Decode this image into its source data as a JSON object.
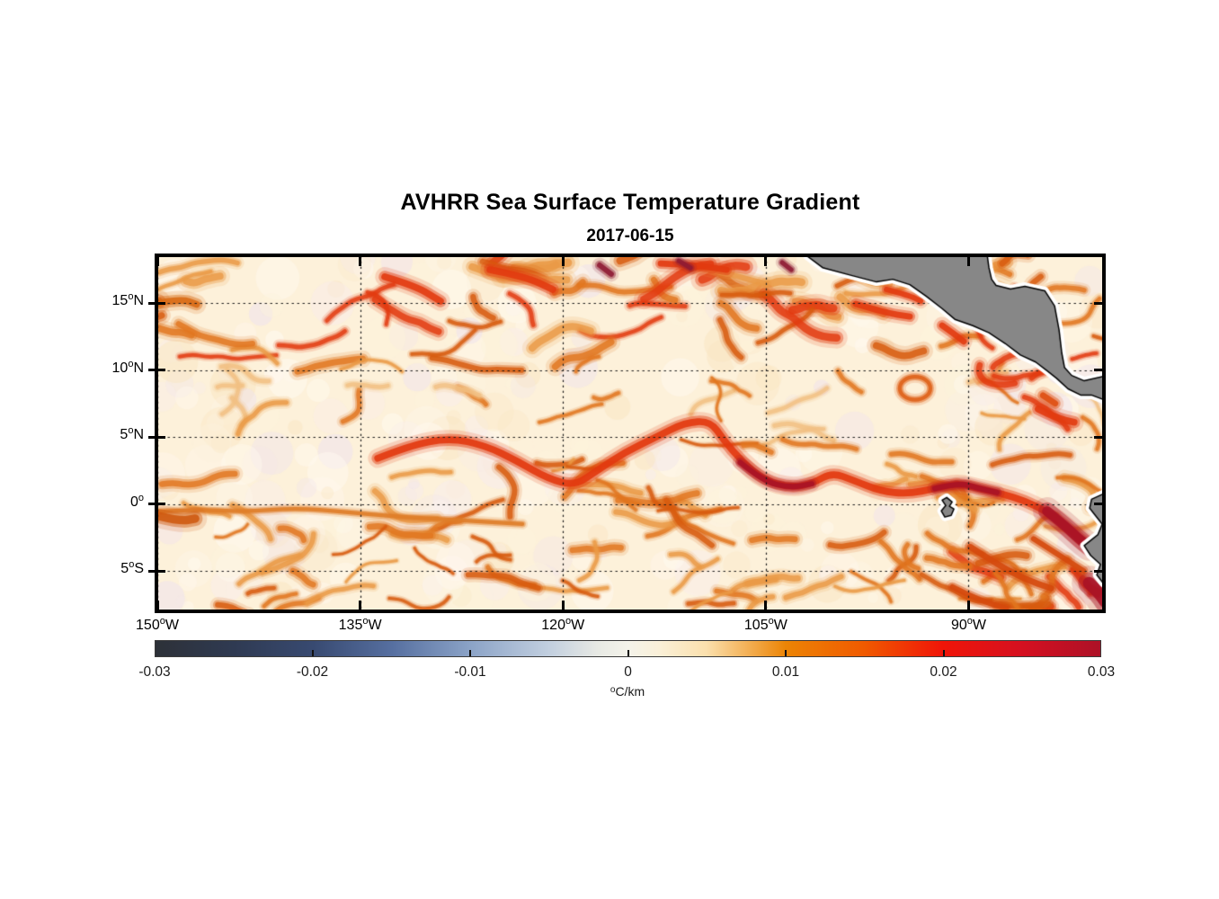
{
  "figure": {
    "title": "AVHRR Sea Surface Temperature Gradient",
    "subtitle": "2017-06-15"
  },
  "map": {
    "x_ticks": [
      {
        "value": -150,
        "text": "150",
        "sup": "o",
        "suffix": "W"
      },
      {
        "value": -135,
        "text": "135",
        "sup": "o",
        "suffix": "W"
      },
      {
        "value": -120,
        "text": "120",
        "sup": "o",
        "suffix": "W"
      },
      {
        "value": -105,
        "text": "105",
        "sup": "o",
        "suffix": "W"
      },
      {
        "value": -90,
        "text": "90",
        "sup": "o",
        "suffix": "W"
      }
    ],
    "y_ticks": [
      {
        "value": 15,
        "text": "15",
        "sup": "o",
        "suffix": "N"
      },
      {
        "value": 10,
        "text": "10",
        "sup": "o",
        "suffix": "N"
      },
      {
        "value": 5,
        "text": "5",
        "sup": "o",
        "suffix": "N"
      },
      {
        "value": 0,
        "text": "0",
        "sup": "o",
        "suffix": ""
      },
      {
        "value": -5,
        "text": "5",
        "sup": "o",
        "suffix": "S"
      }
    ]
  },
  "colorbar": {
    "min": -0.03,
    "max": 0.03,
    "tick_values": [
      -0.03,
      -0.02,
      -0.01,
      0,
      0.01,
      0.02,
      0.03
    ],
    "tick_labels": [
      "-0.03",
      "-0.02",
      "-0.01",
      "0",
      "0.01",
      "0.02",
      "0.03"
    ],
    "interior_tick_values": [
      -0.02,
      -0.01,
      0,
      0.01,
      0.02
    ],
    "unit_sup": "o",
    "unit_text": "C/km",
    "stops": [
      {
        "v": -0.03,
        "c": "#2d3138"
      },
      {
        "v": -0.025,
        "c": "#2f3a52"
      },
      {
        "v": -0.02,
        "c": "#384a71"
      },
      {
        "v": -0.015,
        "c": "#566fa0"
      },
      {
        "v": -0.01,
        "c": "#8ba3c7"
      },
      {
        "v": -0.005,
        "c": "#c2cfdf"
      },
      {
        "v": -0.002,
        "c": "#e7e9e4"
      },
      {
        "v": 0,
        "c": "#f4f3ea"
      },
      {
        "v": 0.002,
        "c": "#faf0d8"
      },
      {
        "v": 0.005,
        "c": "#fbe0ad"
      },
      {
        "v": 0.01,
        "c": "#ec8405"
      },
      {
        "v": 0.015,
        "c": "#f05a00"
      },
      {
        "v": 0.02,
        "c": "#f01508"
      },
      {
        "v": 0.025,
        "c": "#d51020"
      },
      {
        "v": 0.03,
        "c": "#ad1127"
      }
    ]
  },
  "chart_data": {
    "type": "heatmap",
    "title": "AVHRR Sea Surface Temperature Gradient",
    "subtitle": "2017-06-15",
    "variable": "sea surface temperature gradient magnitude",
    "units": "degC/km",
    "extent": {
      "lon": [
        -150,
        -80.06
      ],
      "lat": [
        -7.95,
        18.49
      ]
    },
    "grid_lons": [
      -150,
      -135,
      -120,
      -105,
      -90
    ],
    "grid_lats": [
      15,
      10,
      5,
      0,
      -5
    ],
    "colorbar_range": [
      -0.03,
      0.03
    ],
    "seed": 12345,
    "ocean_bg": "#fdf1da",
    "land_color": "#878787",
    "coast_color": "#000000",
    "coast_halo": "#ffffff",
    "mottle_colors": [
      "#f8ecec",
      "#efe2ee",
      "#fdf3dc",
      "#fff8ee",
      "#fae6c3",
      "#fffaf0"
    ],
    "palette": [
      "#f2c083",
      "#ea9a45",
      "#e1761f",
      "#d85a0e",
      "#e23a10",
      "#bf1b1c"
    ],
    "bands": [
      {
        "name": "north-tropical-front-zone",
        "lon": [
          -150,
          -88.5
        ],
        "lat": [
          10.8,
          18.2
        ],
        "n": 58,
        "wMin": 4,
        "wMax": 11,
        "colors": [
          1,
          2,
          3,
          4
        ],
        "lenMin": 35,
        "lenMax": 110
      },
      {
        "name": "quiet-mid-band",
        "lon": [
          -150,
          -80.2
        ],
        "lat": [
          5.3,
          10.2
        ],
        "n": 26,
        "wMin": 3,
        "wMax": 6,
        "colors": [
          0,
          1,
          2
        ],
        "lenMin": 25,
        "lenMax": 80
      },
      {
        "name": "equatorial-scatter",
        "lon": [
          -150,
          -80.2
        ],
        "lat": [
          -2.5,
          5.0
        ],
        "n": 42,
        "wMin": 3,
        "wMax": 8,
        "colors": [
          1,
          2,
          3
        ],
        "lenMin": 30,
        "lenMax": 95
      },
      {
        "name": "south-band",
        "lon": [
          -150,
          -80.2
        ],
        "lat": [
          -7.8,
          -2.6
        ],
        "n": 40,
        "wMin": 3,
        "wMax": 8,
        "colors": [
          1,
          2,
          3
        ],
        "lenMin": 30,
        "lenMax": 90
      },
      {
        "name": "peru-upwelling-zone",
        "lon": [
          -95,
          -80.5
        ],
        "lat": [
          -7.8,
          -3.0
        ],
        "n": 16,
        "wMin": 5,
        "wMax": 9,
        "colors": [
          2,
          3,
          4
        ],
        "lenMin": 35,
        "lenMax": 90
      },
      {
        "name": "caribbean-corner",
        "lon": [
          -88.3,
          -80.3
        ],
        "lat": [
          6.5,
          18.2
        ],
        "n": 14,
        "wMin": 4,
        "wMax": 8,
        "colors": [
          2,
          3,
          4
        ],
        "lenMin": 25,
        "lenMax": 70
      }
    ],
    "fronts": [
      {
        "name": "equatorial-front",
        "width": 9,
        "color": "#e2380e",
        "path": [
          [
            -133.7,
            3.41
          ],
          [
            -131.4,
            4.34
          ],
          [
            -128.4,
            4.94
          ],
          [
            -125.7,
            4.34
          ],
          [
            -123.4,
            3.21
          ],
          [
            -121.1,
            1.88
          ],
          [
            -119.1,
            1.35
          ],
          [
            -117.4,
            2.55
          ],
          [
            -115.4,
            3.87
          ],
          [
            -113.1,
            5.0
          ],
          [
            -111.0,
            6.07
          ],
          [
            -109.1,
            6.2
          ],
          [
            -108.1,
            4.74
          ],
          [
            -106.8,
            3.21
          ],
          [
            -105.1,
            1.75
          ],
          [
            -103.1,
            1.21
          ],
          [
            -101.5,
            1.55
          ],
          [
            -100.1,
            2.35
          ],
          [
            -98.5,
            1.75
          ],
          [
            -96.5,
            0.95
          ],
          [
            -94.5,
            0.75
          ],
          [
            -92.5,
            1.15
          ],
          [
            -90.8,
            1.55
          ],
          [
            -89.2,
            1.15
          ],
          [
            -87.5,
            0.75
          ],
          [
            -85.8,
            0.22
          ],
          [
            -84.2,
            -0.58
          ],
          [
            -82.8,
            -1.64
          ],
          [
            -81.8,
            -2.58
          ],
          [
            -81.0,
            -3.24
          ]
        ]
      },
      {
        "name": "equatorial-front-core-west",
        "width": 7,
        "color": "#a81226",
        "path": [
          [
            -106.9,
            3.1
          ],
          [
            -105.2,
            1.7
          ],
          [
            -103.2,
            1.2
          ],
          [
            -101.6,
            1.5
          ]
        ]
      },
      {
        "name": "equatorial-front-core-east",
        "width": 7,
        "color": "#a81226",
        "path": [
          [
            -92.5,
            1.15
          ],
          [
            -90.7,
            1.6
          ],
          [
            -89.2,
            1.15
          ],
          [
            -87.9,
            0.85
          ]
        ]
      },
      {
        "name": "coastal-crimson-blob",
        "width": 13,
        "color": "#a81226",
        "path": [
          [
            -84.2,
            -0.55
          ],
          [
            -82.9,
            -1.6
          ],
          [
            -81.9,
            -2.55
          ],
          [
            -81.1,
            -3.2
          ]
        ]
      },
      {
        "name": "peru-corner-blob",
        "width": 16,
        "color": "#a81226",
        "path": [
          [
            -81.1,
            -5.9
          ],
          [
            -80.3,
            -6.7
          ],
          [
            -79.9,
            -7.3
          ]
        ]
      },
      {
        "name": "south-equatorial-branch",
        "width": 5,
        "color": "#df7d28",
        "path": [
          [
            -150,
            -0.6
          ],
          [
            -147,
            -0.4
          ],
          [
            -143.5,
            -0.6
          ],
          [
            -139.8,
            -0.3
          ],
          [
            -136.2,
            -0.6
          ],
          [
            -133,
            -0.9
          ],
          [
            -129.6,
            -1.1
          ],
          [
            -126.4,
            -1.3
          ],
          [
            -123.0,
            -1.5
          ]
        ]
      },
      {
        "name": "west-edge-blob-south",
        "width": 11,
        "color": "#cf5a10",
        "path": [
          [
            -149.9,
            -0.9
          ],
          [
            -148.3,
            -1.3
          ],
          [
            -147.2,
            -1.1
          ]
        ]
      },
      {
        "name": "west-edge-blob-15n",
        "width": 9,
        "color": "#d96a14",
        "path": [
          [
            -149.9,
            15.0
          ],
          [
            -148.2,
            15.3
          ],
          [
            -147.1,
            14.9
          ]
        ]
      },
      {
        "name": "north-core-1",
        "width": 9,
        "color": "#e23a10",
        "path": [
          [
            -133.18,
            16.95
          ],
          [
            -130.92,
            16.28
          ],
          [
            -129.06,
            15.14
          ]
        ]
      },
      {
        "name": "north-core-2",
        "width": 9,
        "color": "#e23a10",
        "path": [
          [
            -125.4,
            17.48
          ],
          [
            -122.74,
            16.95
          ],
          [
            -120.75,
            16.01
          ]
        ]
      },
      {
        "name": "north-core-3",
        "width": 8,
        "color": "#e23a10",
        "path": [
          [
            -112.77,
            17.95
          ],
          [
            -110.1,
            17.82
          ],
          [
            -107.9,
            17.48
          ]
        ]
      },
      {
        "name": "north-core-4",
        "width": 8,
        "color": "#e23a10",
        "path": [
          [
            -98.34,
            14.93
          ],
          [
            -96.14,
            14.26
          ],
          [
            -94.35,
            13.99
          ]
        ]
      },
      {
        "name": "tehuantepec-front",
        "width": 7,
        "color": "#e23a10",
        "path": [
          [
            -96.08,
            16.01
          ],
          [
            -94.35,
            15.54
          ],
          [
            -93.55,
            15.14
          ]
        ]
      },
      {
        "name": "papagayo-front",
        "width": 8,
        "color": "#e23a10",
        "path": [
          [
            -91.96,
            13.32
          ],
          [
            -91.02,
            12.65
          ],
          [
            -90.36,
            12.12
          ]
        ]
      },
      {
        "name": "costa-rica-dome-front",
        "width": 9,
        "color": "#e23a10",
        "path": [
          [
            -84.85,
            7.08
          ],
          [
            -83.5,
            6.4
          ],
          [
            -82.2,
            6.1
          ]
        ]
      },
      {
        "name": "panama-bight-front",
        "width": 8,
        "color": "#df4d10",
        "path": [
          [
            -84.5,
            8.1
          ],
          [
            -83.6,
            7.5
          ]
        ]
      },
      {
        "name": "maroon-top-1",
        "width": 7,
        "color": "#8e1b34",
        "path": [
          [
            -117.29,
            17.82
          ],
          [
            -116.43,
            17.15
          ]
        ]
      },
      {
        "name": "maroon-top-2",
        "width": 6,
        "color": "#8e1b34",
        "path": [
          [
            -111.43,
            18.15
          ],
          [
            -110.57,
            17.62
          ]
        ]
      },
      {
        "name": "maroon-top-3",
        "width": 6,
        "color": "#8e1b34",
        "path": [
          [
            -103.79,
            18.02
          ],
          [
            -103.12,
            17.48
          ]
        ]
      },
      {
        "name": "peru-coastal-filament-1",
        "width": 8,
        "color": "#d4490c",
        "path": [
          [
            -89.9,
            -3.2
          ],
          [
            -87.9,
            -4.5
          ],
          [
            -85.9,
            -5.6
          ],
          [
            -83.9,
            -6.3
          ]
        ]
      },
      {
        "name": "peru-coastal-filament-2",
        "width": 7,
        "color": "#d4490c",
        "path": [
          [
            -85.2,
            -2.6
          ],
          [
            -83.2,
            -3.9
          ],
          [
            -81.5,
            -5.0
          ]
        ]
      },
      {
        "name": "peru-coastal-filament-3",
        "width": 7,
        "color": "#d4490c",
        "path": [
          [
            -91.2,
            -6.2
          ],
          [
            -89.2,
            -7.2
          ],
          [
            -87.2,
            -7.8
          ]
        ]
      }
    ],
    "rings": [
      {
        "name": "eddy-ring",
        "center": [
          -93.96,
          8.63
        ],
        "radius_deg": 1.13,
        "width": 6,
        "color": "#dd5a10"
      }
    ],
    "land": [
      {
        "name": "central-america",
        "poly": [
          [
            -101.93,
            18.49
          ],
          [
            -100.8,
            17.64
          ],
          [
            -98.6,
            17.04
          ],
          [
            -96.81,
            16.57
          ],
          [
            -95.61,
            16.77
          ],
          [
            -94.35,
            16.37
          ],
          [
            -93.15,
            15.51
          ],
          [
            -91.96,
            14.58
          ],
          [
            -91.02,
            13.78
          ],
          [
            -89.69,
            13.31
          ],
          [
            -88.5,
            12.78
          ],
          [
            -87.3,
            11.98
          ],
          [
            -86.17,
            11.12
          ],
          [
            -85.04,
            10.59
          ],
          [
            -84.18,
            9.92
          ],
          [
            -83.51,
            9.39
          ],
          [
            -82.65,
            8.59
          ],
          [
            -81.72,
            8.13
          ],
          [
            -80.92,
            8.13
          ],
          [
            -79.7,
            7.66
          ],
          [
            -79.7,
            9.59
          ],
          [
            -81.45,
            9.19
          ],
          [
            -82.38,
            9.59
          ],
          [
            -82.91,
            10.19
          ],
          [
            -83.11,
            11.26
          ],
          [
            -83.31,
            12.98
          ],
          [
            -83.64,
            14.78
          ],
          [
            -84.37,
            15.91
          ],
          [
            -85.84,
            16.24
          ],
          [
            -86.9,
            16.04
          ],
          [
            -87.97,
            16.31
          ],
          [
            -88.3,
            16.77
          ],
          [
            -88.5,
            17.64
          ],
          [
            -88.63,
            18.6
          ]
        ]
      },
      {
        "name": "south-america",
        "poly": [
          [
            -79.6,
            0.95
          ],
          [
            -80.91,
            0.35
          ],
          [
            -81.05,
            -0.32
          ],
          [
            -80.58,
            -0.92
          ],
          [
            -80.12,
            -1.51
          ],
          [
            -80.45,
            -2.31
          ],
          [
            -81.45,
            -3.11
          ],
          [
            -80.98,
            -3.84
          ],
          [
            -80.25,
            -4.51
          ],
          [
            -80.52,
            -5.3
          ],
          [
            -80.05,
            -5.9
          ],
          [
            -79.6,
            -6.2
          ]
        ]
      },
      {
        "name": "galapagos-islands",
        "poly": [
          [
            -91.62,
            0.48
          ],
          [
            -91.22,
            0.15
          ],
          [
            -91.42,
            -0.18
          ],
          [
            -91.09,
            -0.38
          ],
          [
            -91.29,
            -0.85
          ],
          [
            -91.76,
            -0.98
          ],
          [
            -92.02,
            -0.52
          ],
          [
            -91.69,
            -0.12
          ],
          [
            -91.96,
            0.28
          ]
        ]
      }
    ]
  }
}
